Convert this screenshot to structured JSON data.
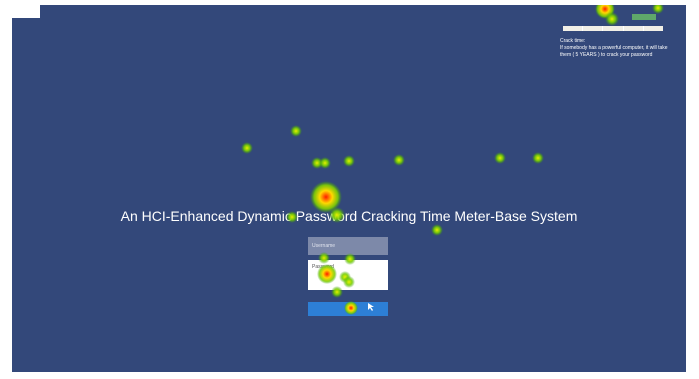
{
  "header": {
    "title": "An HCI-Enhanced Dynamic Password Cracking Time Meter-Base System"
  },
  "crack_panel": {
    "heading": "Crack time:",
    "message": "If somebody has a powerful computer, it will take them ( 5 YEARS ) to crack your password"
  },
  "form": {
    "username": "Username",
    "password": "Password"
  }
}
